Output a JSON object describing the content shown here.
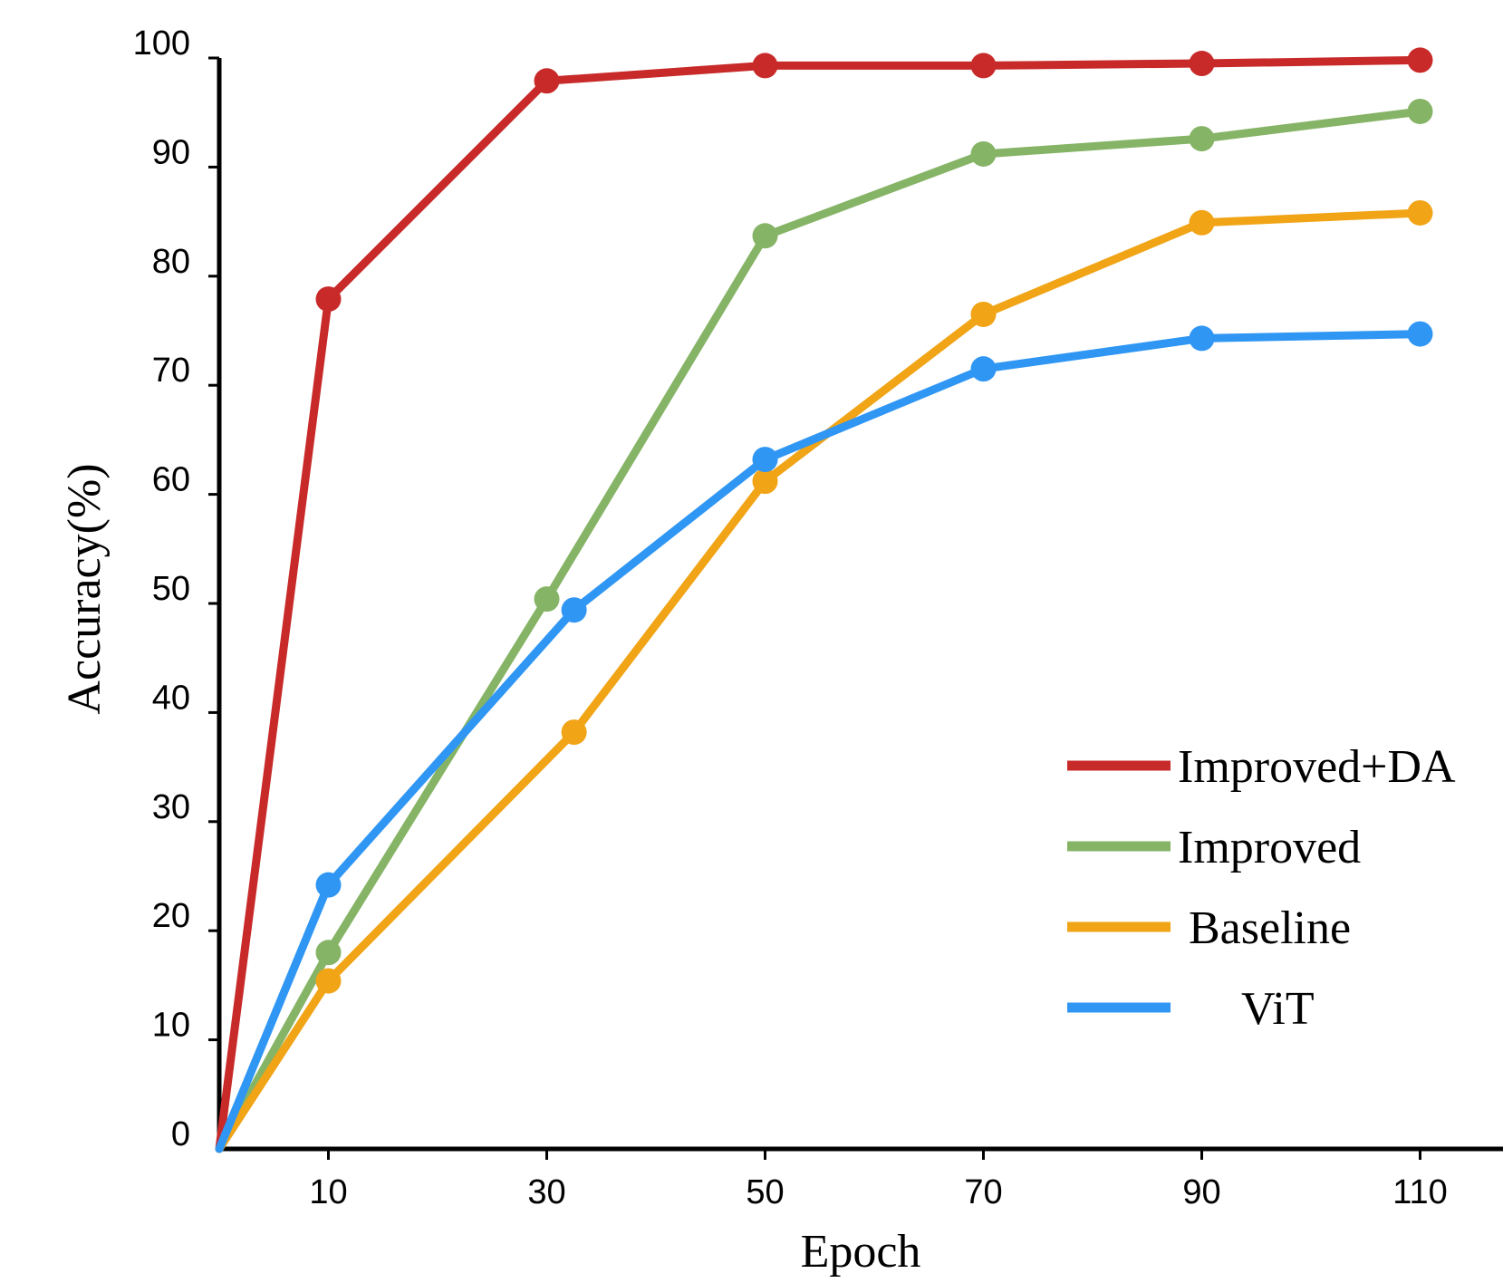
{
  "chart_data": {
    "type": "line",
    "xlabel": "Epoch",
    "ylabel": "Accuracy(%)",
    "xlim": [
      0,
      120
    ],
    "ylim": [
      0,
      100
    ],
    "x_ticks": [
      10,
      30,
      50,
      70,
      90,
      110
    ],
    "y_ticks": [
      0,
      10,
      20,
      30,
      40,
      50,
      60,
      70,
      80,
      90,
      100
    ],
    "grid": false,
    "legend_position": "bottom-right",
    "series": [
      {
        "name": "Improved+DA",
        "color": "#c82a2a",
        "points": [
          [
            0,
            0
          ],
          [
            10,
            77.9
          ],
          [
            30,
            97.9
          ],
          [
            50,
            99.3
          ],
          [
            70,
            99.3
          ],
          [
            90,
            99.5
          ],
          [
            110,
            99.8
          ]
        ]
      },
      {
        "name": "Improved",
        "color": "#86b466",
        "points": [
          [
            0,
            0
          ],
          [
            10,
            18
          ],
          [
            30,
            50.4
          ],
          [
            50,
            83.7
          ],
          [
            70,
            91.2
          ],
          [
            90,
            92.6
          ],
          [
            110,
            95.1
          ]
        ]
      },
      {
        "name": "Baseline",
        "color": "#f0a416",
        "points": [
          [
            0,
            0
          ],
          [
            10,
            15.4
          ],
          [
            32.5,
            38.2
          ],
          [
            50,
            61.2
          ],
          [
            70,
            76.5
          ],
          [
            90,
            84.9
          ],
          [
            110,
            85.8
          ]
        ]
      },
      {
        "name": "ViT",
        "color": "#2f96f4",
        "points": [
          [
            0,
            0
          ],
          [
            10,
            24.2
          ],
          [
            32.5,
            49.4
          ],
          [
            50,
            63.2
          ],
          [
            70,
            71.5
          ],
          [
            90,
            74.3
          ],
          [
            110,
            74.7
          ]
        ]
      }
    ]
  }
}
